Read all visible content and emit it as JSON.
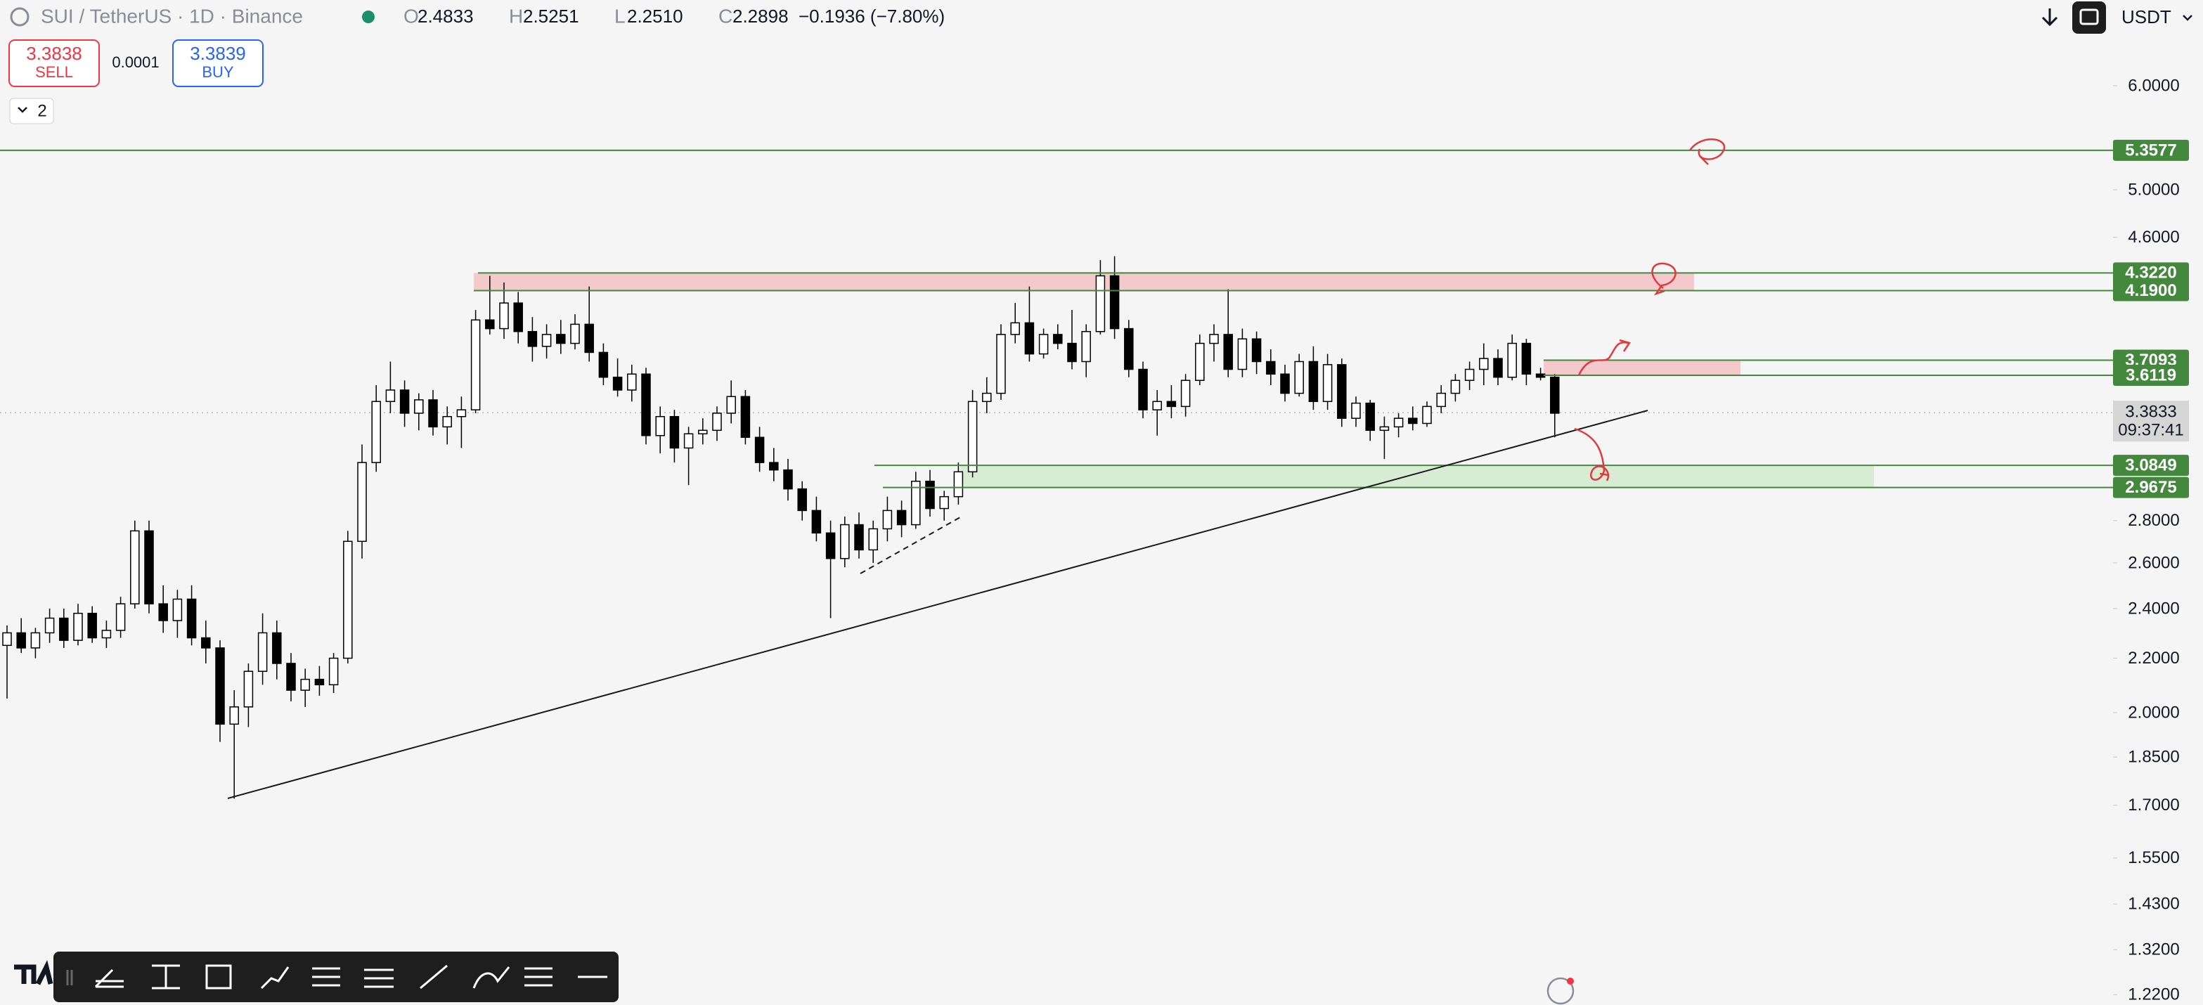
{
  "header": {
    "title": "SUI / TetherUS · 1D · Binance",
    "o_label": "O",
    "o": "2.4833",
    "h_label": "H",
    "h": "2.5251",
    "l_label": "L",
    "l": "2.2510",
    "c_label": "C",
    "c": "2.2898",
    "change": "−0.1936 (−7.80%)",
    "currency": "USDT"
  },
  "trade": {
    "sell_price": "3.3838",
    "sell_label": "SELL",
    "spread": "0.0001",
    "buy_price": "3.3839",
    "buy_label": "BUY"
  },
  "layers_count": "2",
  "chart_data": {
    "type": "candlestick",
    "log_scale": true,
    "ylim": [
      1.198,
      6.973
    ],
    "yticks": [
      {
        "value": 6,
        "label": "6.0000"
      },
      {
        "value": 5,
        "label": "5.0000"
      },
      {
        "value": 4.6,
        "label": "4.6000"
      },
      {
        "value": 2.8,
        "label": "2.8000"
      },
      {
        "value": 2.6,
        "label": "2.6000"
      },
      {
        "value": 2.4,
        "label": "2.4000"
      },
      {
        "value": 2.2,
        "label": "2.2000"
      },
      {
        "value": 2,
        "label": "2.0000"
      },
      {
        "value": 1.85,
        "label": "1.8500"
      },
      {
        "value": 1.7,
        "label": "1.7000"
      },
      {
        "value": 1.55,
        "label": "1.5500"
      },
      {
        "value": 1.43,
        "label": "1.4300"
      },
      {
        "value": 1.32,
        "label": "1.3200"
      },
      {
        "value": 1.22,
        "label": "1.2200"
      }
    ],
    "up_color": "#ffffff",
    "down_color": "#000000",
    "level_color": "#43883d",
    "candles": [
      [
        2.25,
        2.33,
        2.05,
        2.3
      ],
      [
        2.3,
        2.36,
        2.22,
        2.24
      ],
      [
        2.24,
        2.32,
        2.2,
        2.3
      ],
      [
        2.3,
        2.4,
        2.26,
        2.36
      ],
      [
        2.36,
        2.4,
        2.24,
        2.27
      ],
      [
        2.27,
        2.42,
        2.25,
        2.38
      ],
      [
        2.38,
        2.41,
        2.26,
        2.28
      ],
      [
        2.28,
        2.35,
        2.24,
        2.31
      ],
      [
        2.31,
        2.45,
        2.28,
        2.42
      ],
      [
        2.42,
        2.8,
        2.4,
        2.75
      ],
      [
        2.75,
        2.8,
        2.38,
        2.42
      ],
      [
        2.42,
        2.5,
        2.3,
        2.35
      ],
      [
        2.35,
        2.48,
        2.28,
        2.44
      ],
      [
        2.44,
        2.5,
        2.25,
        2.28
      ],
      [
        2.28,
        2.35,
        2.18,
        2.24
      ],
      [
        2.24,
        2.27,
        1.9,
        1.96
      ],
      [
        1.96,
        2.08,
        1.72,
        2.02
      ],
      [
        2.02,
        2.18,
        1.95,
        2.15
      ],
      [
        2.15,
        2.38,
        2.1,
        2.3
      ],
      [
        2.3,
        2.35,
        2.12,
        2.18
      ],
      [
        2.18,
        2.22,
        2.04,
        2.08
      ],
      [
        2.08,
        2.16,
        2.02,
        2.12
      ],
      [
        2.12,
        2.17,
        2.06,
        2.1
      ],
      [
        2.1,
        2.22,
        2.07,
        2.2
      ],
      [
        2.2,
        2.75,
        2.18,
        2.7
      ],
      [
        2.7,
        3.2,
        2.62,
        3.1
      ],
      [
        3.1,
        3.55,
        3.05,
        3.45
      ],
      [
        3.45,
        3.7,
        3.38,
        3.52
      ],
      [
        3.52,
        3.58,
        3.3,
        3.38
      ],
      [
        3.38,
        3.5,
        3.28,
        3.46
      ],
      [
        3.46,
        3.52,
        3.25,
        3.3
      ],
      [
        3.3,
        3.42,
        3.2,
        3.36
      ],
      [
        3.36,
        3.48,
        3.18,
        3.4
      ],
      [
        3.4,
        4.05,
        3.38,
        3.98
      ],
      [
        3.98,
        4.3,
        3.88,
        3.92
      ],
      [
        3.92,
        4.25,
        3.85,
        4.1
      ],
      [
        4.1,
        4.18,
        3.82,
        3.9
      ],
      [
        3.9,
        4.0,
        3.7,
        3.8
      ],
      [
        3.8,
        3.95,
        3.72,
        3.88
      ],
      [
        3.88,
        3.98,
        3.75,
        3.82
      ],
      [
        3.82,
        4.02,
        3.78,
        3.95
      ],
      [
        3.95,
        4.22,
        3.7,
        3.76
      ],
      [
        3.76,
        3.82,
        3.55,
        3.6
      ],
      [
        3.6,
        3.72,
        3.48,
        3.52
      ],
      [
        3.52,
        3.68,
        3.45,
        3.62
      ],
      [
        3.62,
        3.66,
        3.2,
        3.25
      ],
      [
        3.25,
        3.42,
        3.15,
        3.36
      ],
      [
        3.36,
        3.4,
        3.1,
        3.18
      ],
      [
        3.18,
        3.3,
        2.98,
        3.26
      ],
      [
        3.26,
        3.35,
        3.2,
        3.28
      ],
      [
        3.28,
        3.42,
        3.22,
        3.38
      ],
      [
        3.38,
        3.58,
        3.32,
        3.48
      ],
      [
        3.48,
        3.52,
        3.2,
        3.24
      ],
      [
        3.24,
        3.3,
        3.05,
        3.1
      ],
      [
        3.1,
        3.18,
        3.0,
        3.06
      ],
      [
        3.06,
        3.12,
        2.9,
        2.96
      ],
      [
        2.96,
        3.0,
        2.8,
        2.85
      ],
      [
        2.85,
        2.92,
        2.7,
        2.74
      ],
      [
        2.74,
        2.8,
        2.36,
        2.62
      ],
      [
        2.62,
        2.82,
        2.58,
        2.78
      ],
      [
        2.78,
        2.84,
        2.62,
        2.66
      ],
      [
        2.66,
        2.8,
        2.6,
        2.76
      ],
      [
        2.76,
        2.92,
        2.7,
        2.85
      ],
      [
        2.85,
        2.9,
        2.72,
        2.78
      ],
      [
        2.78,
        3.05,
        2.76,
        3.0
      ],
      [
        3.0,
        3.06,
        2.82,
        2.86
      ],
      [
        2.86,
        2.95,
        2.8,
        2.92
      ],
      [
        2.92,
        3.1,
        2.88,
        3.05
      ],
      [
        3.05,
        3.52,
        3.02,
        3.45
      ],
      [
        3.45,
        3.6,
        3.38,
        3.5
      ],
      [
        3.5,
        3.95,
        3.46,
        3.88
      ],
      [
        3.88,
        4.1,
        3.82,
        3.96
      ],
      [
        3.96,
        4.22,
        3.7,
        3.75
      ],
      [
        3.75,
        3.92,
        3.72,
        3.88
      ],
      [
        3.88,
        3.95,
        3.78,
        3.82
      ],
      [
        3.82,
        4.05,
        3.65,
        3.7
      ],
      [
        3.7,
        3.95,
        3.6,
        3.9
      ],
      [
        3.9,
        4.42,
        3.88,
        4.3
      ],
      [
        4.3,
        4.45,
        3.85,
        3.92
      ],
      [
        3.92,
        3.98,
        3.6,
        3.65
      ],
      [
        3.65,
        3.7,
        3.35,
        3.4
      ],
      [
        3.4,
        3.52,
        3.25,
        3.45
      ],
      [
        3.45,
        3.55,
        3.35,
        3.42
      ],
      [
        3.42,
        3.62,
        3.36,
        3.58
      ],
      [
        3.58,
        3.88,
        3.55,
        3.82
      ],
      [
        3.82,
        3.95,
        3.7,
        3.88
      ],
      [
        3.88,
        4.2,
        3.6,
        3.65
      ],
      [
        3.65,
        3.92,
        3.6,
        3.85
      ],
      [
        3.85,
        3.9,
        3.62,
        3.7
      ],
      [
        3.7,
        3.78,
        3.55,
        3.62
      ],
      [
        3.62,
        3.68,
        3.45,
        3.5
      ],
      [
        3.5,
        3.75,
        3.48,
        3.7
      ],
      [
        3.7,
        3.8,
        3.4,
        3.45
      ],
      [
        3.45,
        3.75,
        3.4,
        3.68
      ],
      [
        3.68,
        3.72,
        3.3,
        3.35
      ],
      [
        3.35,
        3.48,
        3.3,
        3.44
      ],
      [
        3.44,
        3.46,
        3.22,
        3.28
      ],
      [
        3.28,
        3.36,
        3.12,
        3.3
      ],
      [
        3.3,
        3.38,
        3.24,
        3.35
      ],
      [
        3.35,
        3.42,
        3.28,
        3.32
      ],
      [
        3.32,
        3.45,
        3.3,
        3.42
      ],
      [
        3.42,
        3.55,
        3.38,
        3.5
      ],
      [
        3.5,
        3.62,
        3.45,
        3.58
      ],
      [
        3.58,
        3.7,
        3.52,
        3.65
      ],
      [
        3.65,
        3.82,
        3.55,
        3.72
      ],
      [
        3.72,
        3.78,
        3.55,
        3.6
      ],
      [
        3.6,
        3.88,
        3.58,
        3.82
      ],
      [
        3.82,
        3.85,
        3.55,
        3.62
      ],
      [
        3.62,
        3.66,
        3.58,
        3.6
      ],
      [
        3.6,
        3.62,
        3.24,
        3.38
      ]
    ],
    "levels": [
      5.3577,
      {
        "value": 4.322,
        "label": "4.3220"
      },
      {
        "value": 4.19,
        "label": "4.1900"
      },
      3.7093,
      3.6119,
      3.0849,
      2.9675
    ],
    "zones": [
      {
        "low": 4.19,
        "high": 4.322,
        "color": "#f4c9cc"
      },
      {
        "low": 3.6119,
        "high": 3.7093,
        "color": "#f4c9cc"
      },
      {
        "low": 2.9675,
        "high": 3.0849,
        "color": "#d8ecd3"
      }
    ],
    "last_price": 3.3833,
    "countdown": "09:37:41"
  }
}
